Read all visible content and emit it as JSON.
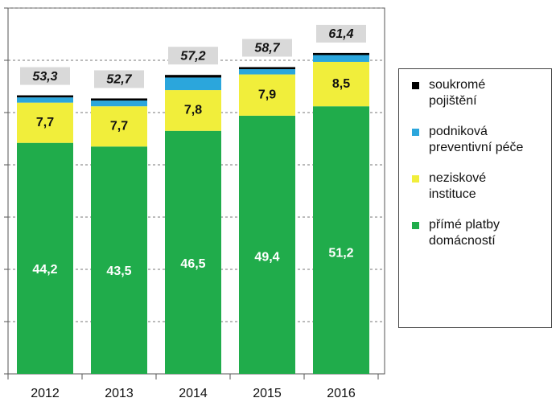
{
  "chart_data": {
    "type": "stacked-bar",
    "categories": [
      "2012",
      "2013",
      "2014",
      "2015",
      "2016"
    ],
    "series": [
      {
        "name": "přímé platby domácností",
        "color": "#20ac4b",
        "values": [
          44.2,
          43.5,
          46.5,
          49.4,
          51.2
        ],
        "value_labels": [
          "44,2",
          "43,5",
          "46,5",
          "49,4",
          "51,2"
        ]
      },
      {
        "name": "neziskové instituce",
        "color": "#f1ee3b",
        "values": [
          7.7,
          7.7,
          7.8,
          7.9,
          8.5
        ],
        "value_labels": [
          "7,7",
          "7,7",
          "7,8",
          "7,9",
          "8,5"
        ]
      },
      {
        "name": "podniková preventivní péče",
        "color": "#2ba6dc",
        "values": [
          1.0,
          1.1,
          2.4,
          1.0,
          1.3
        ]
      },
      {
        "name": "soukromé pojištění",
        "color": "#000000",
        "values": [
          0.4,
          0.4,
          0.5,
          0.4,
          0.4
        ]
      }
    ],
    "totals": [
      53.3,
      52.7,
      57.2,
      58.7,
      61.4
    ],
    "total_labels": [
      "53,3",
      "52,7",
      "57,2",
      "58,7",
      "61,4"
    ],
    "ylim": [
      0,
      70
    ],
    "yticks": [
      0,
      10,
      20,
      30,
      40,
      50,
      60,
      70
    ],
    "grid": true
  }
}
